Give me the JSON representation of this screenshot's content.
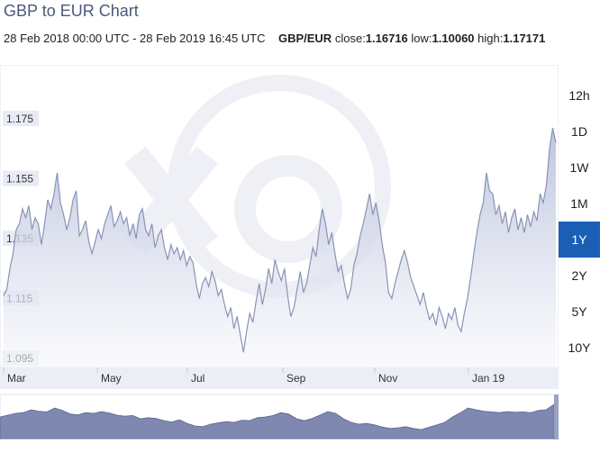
{
  "header": {
    "title": "GBP to EUR Chart",
    "date_range": "28 Feb 2018 00:00 UTC - 28 Feb 2019 16:45 UTC",
    "pair": "GBP/EUR",
    "close_label": "close:",
    "close_value": "1.16716",
    "low_label": "low:",
    "low_value": "1.10060",
    "high_label": "high:",
    "high_value": "1.17171"
  },
  "range_buttons": [
    {
      "label": "12h",
      "active": false
    },
    {
      "label": "1D",
      "active": false
    },
    {
      "label": "1W",
      "active": false
    },
    {
      "label": "1M",
      "active": false
    },
    {
      "label": "1Y",
      "active": true
    },
    {
      "label": "2Y",
      "active": false
    },
    {
      "label": "5Y",
      "active": false
    },
    {
      "label": "10Y",
      "active": false
    }
  ],
  "colors": {
    "line": "#8a93b5",
    "area_top": "#b9c1dc",
    "area_bottom": "#f6f7fb",
    "nav_fill": "#7f88b0",
    "active_button": "#1a5fb4"
  },
  "chart_data": {
    "type": "area",
    "title": "GBP to EUR Chart",
    "xlabel": "",
    "ylabel": "",
    "x_ticks": [
      "Mar",
      "May",
      "Jul",
      "Sep",
      "Nov",
      "Jan 19"
    ],
    "y_ticks": [
      "1.175",
      "1.155",
      "1.135",
      "1.115",
      "1.095"
    ],
    "ylim": [
      1.09,
      1.18
    ],
    "grid": false,
    "series": [
      {
        "values": [
          1.116,
          1.118,
          1.125,
          1.13,
          1.138,
          1.14,
          1.145,
          1.142,
          1.146,
          1.138,
          1.142,
          1.14,
          1.133,
          1.14,
          1.148,
          1.145,
          1.15,
          1.157,
          1.147,
          1.143,
          1.138,
          1.142,
          1.148,
          1.151,
          1.136,
          1.138,
          1.141,
          1.134,
          1.13,
          1.134,
          1.138,
          1.135,
          1.14,
          1.143,
          1.146,
          1.139,
          1.141,
          1.144,
          1.14,
          1.142,
          1.136,
          1.14,
          1.135,
          1.143,
          1.145,
          1.138,
          1.136,
          1.14,
          1.132,
          1.136,
          1.138,
          1.132,
          1.128,
          1.133,
          1.13,
          1.132,
          1.128,
          1.131,
          1.126,
          1.129,
          1.127,
          1.12,
          1.115,
          1.12,
          1.122,
          1.119,
          1.124,
          1.121,
          1.116,
          1.118,
          1.113,
          1.109,
          1.112,
          1.105,
          1.109,
          1.103,
          1.097,
          1.104,
          1.11,
          1.107,
          1.114,
          1.12,
          1.113,
          1.118,
          1.125,
          1.12,
          1.128,
          1.124,
          1.121,
          1.125,
          1.116,
          1.109,
          1.112,
          1.118,
          1.124,
          1.117,
          1.12,
          1.126,
          1.132,
          1.129,
          1.138,
          1.145,
          1.14,
          1.133,
          1.137,
          1.13,
          1.124,
          1.126,
          1.12,
          1.115,
          1.118,
          1.126,
          1.13,
          1.136,
          1.14,
          1.145,
          1.15,
          1.143,
          1.147,
          1.141,
          1.133,
          1.127,
          1.117,
          1.115,
          1.12,
          1.124,
          1.128,
          1.131,
          1.127,
          1.122,
          1.119,
          1.116,
          1.113,
          1.117,
          1.112,
          1.108,
          1.11,
          1.106,
          1.112,
          1.109,
          1.105,
          1.11,
          1.108,
          1.112,
          1.106,
          1.104,
          1.11,
          1.115,
          1.122,
          1.13,
          1.137,
          1.143,
          1.147,
          1.157,
          1.151,
          1.15,
          1.143,
          1.146,
          1.14,
          1.144,
          1.137,
          1.142,
          1.145,
          1.138,
          1.142,
          1.137,
          1.143,
          1.139,
          1.144,
          1.141,
          1.15,
          1.147,
          1.153,
          1.165,
          1.172,
          1.167
        ]
      }
    ],
    "navigator_series": [
      0.6,
      0.65,
      0.7,
      0.72,
      0.8,
      0.76,
      0.74,
      0.85,
      0.78,
      0.68,
      0.66,
      0.72,
      0.7,
      0.75,
      0.71,
      0.65,
      0.62,
      0.64,
      0.55,
      0.58,
      0.56,
      0.5,
      0.46,
      0.52,
      0.42,
      0.35,
      0.33,
      0.4,
      0.44,
      0.47,
      0.45,
      0.51,
      0.5,
      0.58,
      0.6,
      0.64,
      0.72,
      0.68,
      0.55,
      0.5,
      0.56,
      0.65,
      0.75,
      0.7,
      0.55,
      0.45,
      0.4,
      0.42,
      0.38,
      0.32,
      0.28,
      0.3,
      0.33,
      0.28,
      0.25,
      0.32,
      0.38,
      0.45,
      0.6,
      0.72,
      0.85,
      0.8,
      0.76,
      0.74,
      0.72,
      0.75,
      0.73,
      0.74,
      0.72,
      0.78,
      0.8,
      0.95
    ]
  }
}
